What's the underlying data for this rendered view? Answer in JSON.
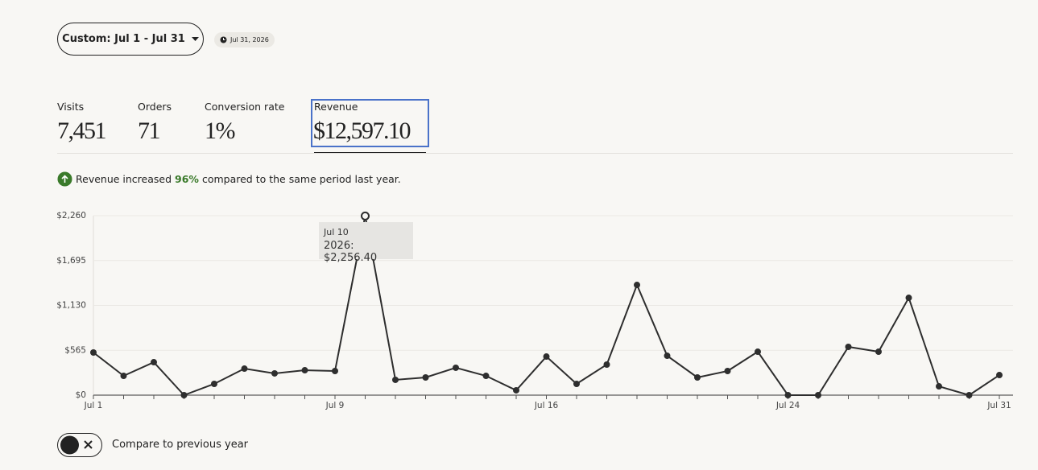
{
  "date_button": "Custom: Jul 1 - Jul 31",
  "date_badge": "Jul 31, 2026",
  "metrics": [
    {
      "label": "Visits",
      "value": "7,451"
    },
    {
      "label": "Orders",
      "value": "71"
    },
    {
      "label": "Conversion rate",
      "value": "1%"
    },
    {
      "label": "Revenue",
      "value": "$12,597.10"
    }
  ],
  "insight": {
    "prefix": "Revenue increased",
    "percent": "96%",
    "suffix": "compared to the same period last year."
  },
  "chart_data": {
    "type": "line",
    "x": [
      1,
      2,
      3,
      4,
      5,
      6,
      7,
      8,
      9,
      10,
      11,
      12,
      13,
      14,
      15,
      16,
      17,
      18,
      19,
      20,
      21,
      22,
      23,
      24,
      25,
      26,
      27,
      28,
      29,
      30,
      31
    ],
    "series": [
      {
        "name": "2026",
        "color": "#2e2e2e",
        "values": [
          537,
          243,
          415,
          0,
          142,
          334,
          274,
          314,
          304,
          2256.4,
          193,
          223,
          345,
          243,
          61,
          486,
          142,
          385,
          1388,
          496,
          223,
          304,
          547,
          0,
          0,
          608,
          547,
          1226,
          111,
          0,
          253
        ]
      }
    ],
    "xlim": [
      1,
      31
    ],
    "xticks": [
      {
        "value": 1,
        "label": "Jul 1"
      },
      {
        "value": 9,
        "label": "Jul 9"
      },
      {
        "value": 16,
        "label": "Jul 16"
      },
      {
        "value": 24,
        "label": "Jul 24"
      },
      {
        "value": 31,
        "label": "Jul 31"
      }
    ],
    "ylim": [
      0,
      2260
    ],
    "yticks": [
      {
        "value": 0,
        "label": "$0"
      },
      {
        "value": 565,
        "label": "$565"
      },
      {
        "value": 1130,
        "label": "$1,130"
      },
      {
        "value": 1695,
        "label": "$1,695"
      },
      {
        "value": 2260,
        "label": "$2,260"
      }
    ],
    "grid": true,
    "tooltip": {
      "title": "Jul 10",
      "label": "2026: $2,256.40"
    }
  },
  "toggle_label": "Compare to previous year"
}
